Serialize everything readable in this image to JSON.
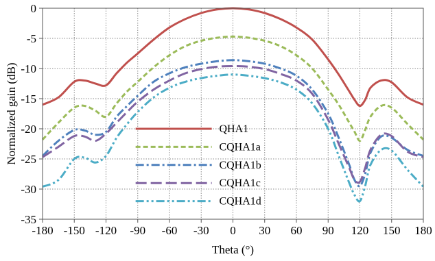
{
  "chart_data": {
    "type": "line",
    "title": "",
    "xlabel": "Theta (°)",
    "ylabel": "Normalized gain (dB)",
    "xlim": [
      -180,
      180
    ],
    "ylim": [
      -35,
      0
    ],
    "xticks": [
      -180,
      -150,
      -120,
      -90,
      -60,
      -30,
      0,
      30,
      60,
      90,
      120,
      150,
      180
    ],
    "yticks": [
      0,
      -5,
      -10,
      -15,
      -20,
      -25,
      -30,
      -35
    ],
    "grid": "dotted",
    "legend_placement": "lower-center",
    "x": [
      -180,
      -165,
      -150,
      -140,
      -130,
      -120,
      -110,
      -100,
      -90,
      -75,
      -60,
      -45,
      -30,
      -15,
      0,
      15,
      30,
      45,
      60,
      75,
      90,
      100,
      110,
      115,
      120,
      125,
      130,
      140,
      150,
      165,
      180
    ],
    "series": [
      {
        "name": "QHA1",
        "color": "#c0504d",
        "dash": "solid",
        "values": [
          -16,
          -14.8,
          -12.2,
          -12,
          -12.5,
          -12.8,
          -10.8,
          -9,
          -7.5,
          -5.2,
          -3.2,
          -1.8,
          -0.8,
          -0.2,
          0,
          -0.2,
          -0.8,
          -1.8,
          -3.2,
          -5.2,
          -8.5,
          -11,
          -13.8,
          -15.2,
          -16.2,
          -15.2,
          -13.2,
          -12,
          -12.3,
          -14.8,
          -16
        ]
      },
      {
        "name": "CQHA1a",
        "color": "#9bbb59",
        "dash": "dash",
        "values": [
          -21.8,
          -19,
          -16.5,
          -16.2,
          -17,
          -18,
          -15.8,
          -13.8,
          -12.2,
          -9.8,
          -7.8,
          -6.3,
          -5.4,
          -4.9,
          -4.7,
          -4.9,
          -5.4,
          -6.3,
          -7.8,
          -10,
          -13.5,
          -16,
          -19,
          -20.5,
          -22,
          -20.2,
          -18,
          -16.2,
          -16.5,
          -19.2,
          -21.8
        ]
      },
      {
        "name": "CQHA1b",
        "color": "#4f81bd",
        "dash": "dashdot",
        "values": [
          -24.5,
          -22,
          -20.2,
          -20.3,
          -21,
          -20.5,
          -18,
          -16.2,
          -14.5,
          -12.2,
          -10.8,
          -9.8,
          -9.2,
          -8.8,
          -8.6,
          -8.8,
          -9.2,
          -10,
          -11.2,
          -13.5,
          -17.5,
          -21.5,
          -26,
          -28.5,
          -29.5,
          -27.5,
          -24,
          -21.3,
          -21.5,
          -23.5,
          -24.5
        ]
      },
      {
        "name": "CQHA1c",
        "color": "#8064a2",
        "dash": "longdash",
        "values": [
          -24.7,
          -23,
          -21.2,
          -21.3,
          -22,
          -20.8,
          -19,
          -17.2,
          -15.5,
          -13.5,
          -12,
          -10.8,
          -10.1,
          -9.7,
          -9.6,
          -9.7,
          -10.1,
          -10.9,
          -12,
          -14.2,
          -18.5,
          -22.5,
          -26.5,
          -28.5,
          -28.8,
          -26.5,
          -23.5,
          -21,
          -21.2,
          -23.8,
          -24.7
        ]
      },
      {
        "name": "CQHA1d",
        "color": "#4bacc6",
        "dash": "dashdotdot",
        "values": [
          -29.6,
          -28.5,
          -25,
          -24.8,
          -25.6,
          -24.5,
          -21.5,
          -19.2,
          -17.2,
          -14.8,
          -13.2,
          -12.2,
          -11.6,
          -11.2,
          -11,
          -11.2,
          -11.6,
          -12.3,
          -13.5,
          -15.8,
          -20,
          -24.5,
          -29,
          -31,
          -32,
          -29.5,
          -26,
          -23.5,
          -23.6,
          -26.8,
          -29.6
        ]
      }
    ]
  }
}
